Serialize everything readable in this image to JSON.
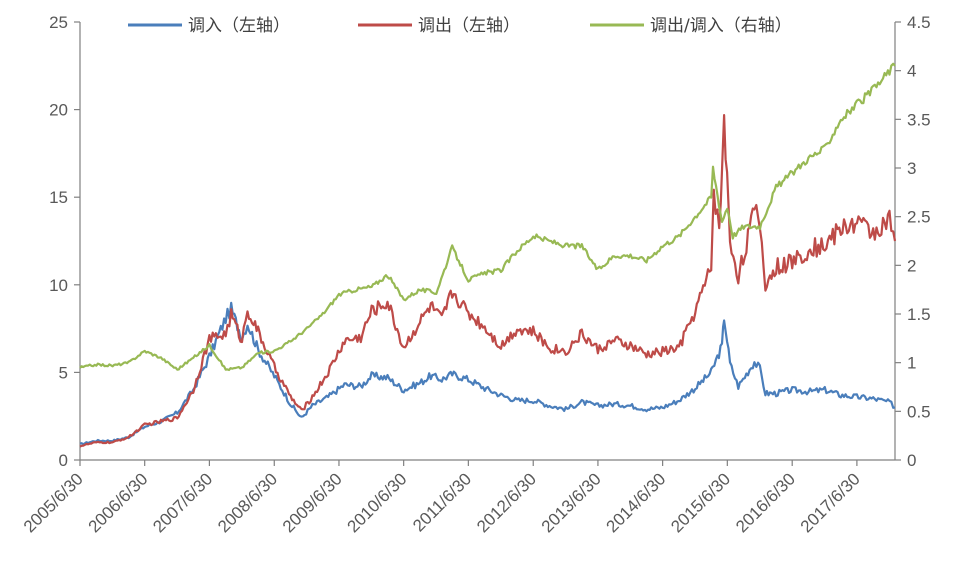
{
  "chart_data": {
    "type": "line",
    "title": "",
    "xlabel": "",
    "ylabel_left": "",
    "ylabel_right": "",
    "x_ticks": [
      "2005/6/30",
      "2006/6/30",
      "2007/6/30",
      "2008/6/30",
      "2009/6/30",
      "2010/6/30",
      "2011/6/30",
      "2012/6/30",
      "2013/6/30",
      "2014/6/30",
      "2015/6/30",
      "2016/6/30",
      "2017/6/30"
    ],
    "x_range": [
      "2005/6/30",
      "2018/1/31"
    ],
    "ylim_left": [
      0,
      25
    ],
    "ylim_right": [
      0,
      4.5
    ],
    "y_left_ticks": [
      "0",
      "5",
      "10",
      "15",
      "20",
      "25"
    ],
    "y_right_ticks": [
      "0",
      "0.5",
      "1",
      "1.5",
      "2",
      "2.5",
      "3",
      "3.5",
      "4",
      "4.5"
    ],
    "legend_position": "top-center",
    "grid": false,
    "series": [
      {
        "name": "调入（左轴）",
        "axis": "left",
        "color": "#4a7ebb",
        "points": [
          [
            "2005/6/30",
            0.9
          ],
          [
            "2005/9/30",
            1.1
          ],
          [
            "2005/12/31",
            1.1
          ],
          [
            "2006/3/31",
            1.3
          ],
          [
            "2006/6/30",
            1.9
          ],
          [
            "2006/9/30",
            2.2
          ],
          [
            "2006/12/31",
            2.7
          ],
          [
            "2007/3/31",
            4.0
          ],
          [
            "2007/6/30",
            5.9
          ],
          [
            "2007/9/30",
            8.1
          ],
          [
            "2007/10/31",
            8.6
          ],
          [
            "2007/12/31",
            7.0
          ],
          [
            "2008/1/31",
            7.8
          ],
          [
            "2008/3/31",
            6.3
          ],
          [
            "2008/6/30",
            4.8
          ],
          [
            "2008/9/30",
            3.2
          ],
          [
            "2008/11/30",
            2.4
          ],
          [
            "2009/1/31",
            3.1
          ],
          [
            "2009/4/30",
            3.6
          ],
          [
            "2009/7/31",
            4.3
          ],
          [
            "2009/10/31",
            4.2
          ],
          [
            "2009/12/31",
            4.8
          ],
          [
            "2010/3/31",
            4.7
          ],
          [
            "2010/6/30",
            4.0
          ],
          [
            "2010/9/30",
            4.4
          ],
          [
            "2010/11/30",
            4.8
          ],
          [
            "2011/1/31",
            4.6
          ],
          [
            "2011/3/31",
            4.9
          ],
          [
            "2011/6/30",
            4.6
          ],
          [
            "2011/9/30",
            4.1
          ],
          [
            "2011/12/31",
            3.7
          ],
          [
            "2012/3/31",
            3.4
          ],
          [
            "2012/6/30",
            3.4
          ],
          [
            "2012/9/30",
            3.1
          ],
          [
            "2012/12/31",
            2.9
          ],
          [
            "2013/3/31",
            3.3
          ],
          [
            "2013/6/30",
            3.1
          ],
          [
            "2013/9/30",
            3.2
          ],
          [
            "2013/12/31",
            3.1
          ],
          [
            "2014/3/31",
            2.9
          ],
          [
            "2014/6/30",
            3.0
          ],
          [
            "2014/9/30",
            3.4
          ],
          [
            "2014/12/31",
            4.1
          ],
          [
            "2015/3/31",
            5.0
          ],
          [
            "2015/5/31",
            6.5
          ],
          [
            "2015/6/12",
            8.2
          ],
          [
            "2015/7/15",
            5.5
          ],
          [
            "2015/8/31",
            4.2
          ],
          [
            "2015/11/30",
            5.6
          ],
          [
            "2015/12/31",
            5.2
          ],
          [
            "2016/1/31",
            3.8
          ],
          [
            "2016/3/31",
            3.8
          ],
          [
            "2016/6/30",
            4.0
          ],
          [
            "2016/9/30",
            3.9
          ],
          [
            "2016/12/31",
            4.0
          ],
          [
            "2017/3/31",
            3.7
          ],
          [
            "2017/6/30",
            3.6
          ],
          [
            "2017/9/30",
            3.5
          ],
          [
            "2017/12/31",
            3.3
          ],
          [
            "2018/1/31",
            3.0
          ]
        ]
      },
      {
        "name": "调出（左轴）",
        "axis": "left",
        "color": "#be4b48",
        "points": [
          [
            "2005/6/30",
            0.8
          ],
          [
            "2005/9/30",
            1.0
          ],
          [
            "2005/12/31",
            1.0
          ],
          [
            "2006/3/31",
            1.3
          ],
          [
            "2006/6/30",
            2.0
          ],
          [
            "2006/9/30",
            2.2
          ],
          [
            "2006/12/31",
            2.4
          ],
          [
            "2007/3/31",
            4.0
          ],
          [
            "2007/6/30",
            6.9
          ],
          [
            "2007/9/30",
            7.2
          ],
          [
            "2007/10/31",
            8.3
          ],
          [
            "2007/12/31",
            6.8
          ],
          [
            "2008/1/31",
            8.6
          ],
          [
            "2008/3/31",
            7.3
          ],
          [
            "2008/6/30",
            5.3
          ],
          [
            "2008/9/30",
            3.6
          ],
          [
            "2008/11/30",
            2.8
          ],
          [
            "2009/1/31",
            3.6
          ],
          [
            "2009/4/30",
            5.0
          ],
          [
            "2009/7/31",
            6.8
          ],
          [
            "2009/10/31",
            7.0
          ],
          [
            "2009/12/31",
            8.5
          ],
          [
            "2010/3/31",
            9.0
          ],
          [
            "2010/6/30",
            6.4
          ],
          [
            "2010/9/30",
            7.9
          ],
          [
            "2010/11/30",
            8.8
          ],
          [
            "2011/1/31",
            8.0
          ],
          [
            "2011/3/31",
            9.6
          ],
          [
            "2011/6/30",
            8.4
          ],
          [
            "2011/9/30",
            7.6
          ],
          [
            "2011/12/31",
            6.5
          ],
          [
            "2012/3/31",
            7.5
          ],
          [
            "2012/6/30",
            7.3
          ],
          [
            "2012/9/30",
            6.4
          ],
          [
            "2012/12/31",
            6.2
          ],
          [
            "2013/3/31",
            7.2
          ],
          [
            "2013/6/30",
            6.3
          ],
          [
            "2013/9/30",
            6.8
          ],
          [
            "2013/12/31",
            6.5
          ],
          [
            "2014/3/31",
            6.0
          ],
          [
            "2014/6/30",
            6.2
          ],
          [
            "2014/9/30",
            6.4
          ],
          [
            "2014/12/31",
            8.5
          ],
          [
            "2015/3/31",
            11.0
          ],
          [
            "2015/4/15",
            15.5
          ],
          [
            "2015/5/15",
            13.0
          ],
          [
            "2015/6/12",
            19.4
          ],
          [
            "2015/7/15",
            12.5
          ],
          [
            "2015/8/31",
            10.5
          ],
          [
            "2015/11/30",
            14.2
          ],
          [
            "2015/12/31",
            13.5
          ],
          [
            "2016/1/31",
            10.0
          ],
          [
            "2016/3/31",
            11.0
          ],
          [
            "2016/6/30",
            11.3
          ],
          [
            "2016/9/30",
            12.0
          ],
          [
            "2016/12/31",
            12.3
          ],
          [
            "2017/3/31",
            13.2
          ],
          [
            "2017/6/30",
            13.6
          ],
          [
            "2017/9/30",
            13.0
          ],
          [
            "2017/12/31",
            13.7
          ],
          [
            "2018/1/31",
            12.5
          ]
        ]
      },
      {
        "name": "调出/调入（右轴）",
        "axis": "right",
        "color": "#98b954",
        "points": [
          [
            "2005/6/30",
            0.95
          ],
          [
            "2005/9/30",
            0.98
          ],
          [
            "2005/12/31",
            0.97
          ],
          [
            "2006/3/31",
            1.0
          ],
          [
            "2006/6/30",
            1.12
          ],
          [
            "2006/9/30",
            1.05
          ],
          [
            "2006/12/31",
            0.93
          ],
          [
            "2007/3/31",
            1.05
          ],
          [
            "2007/6/30",
            1.18
          ],
          [
            "2007/9/30",
            0.93
          ],
          [
            "2007/12/31",
            0.95
          ],
          [
            "2008/3/31",
            1.1
          ],
          [
            "2008/6/30",
            1.12
          ],
          [
            "2008/9/30",
            1.22
          ],
          [
            "2008/12/31",
            1.35
          ],
          [
            "2009/3/31",
            1.5
          ],
          [
            "2009/6/30",
            1.7
          ],
          [
            "2009/9/30",
            1.75
          ],
          [
            "2009/12/31",
            1.78
          ],
          [
            "2010/3/31",
            1.9
          ],
          [
            "2010/6/30",
            1.65
          ],
          [
            "2010/9/30",
            1.75
          ],
          [
            "2010/12/31",
            1.72
          ],
          [
            "2011/3/31",
            2.18
          ],
          [
            "2011/6/30",
            1.85
          ],
          [
            "2011/9/30",
            1.92
          ],
          [
            "2011/12/31",
            1.95
          ],
          [
            "2012/3/31",
            2.15
          ],
          [
            "2012/6/30",
            2.3
          ],
          [
            "2012/9/30",
            2.25
          ],
          [
            "2012/12/31",
            2.2
          ],
          [
            "2013/3/31",
            2.2
          ],
          [
            "2013/6/30",
            1.95
          ],
          [
            "2013/9/30",
            2.1
          ],
          [
            "2013/12/31",
            2.1
          ],
          [
            "2014/3/31",
            2.05
          ],
          [
            "2014/6/30",
            2.2
          ],
          [
            "2014/9/30",
            2.3
          ],
          [
            "2014/12/31",
            2.5
          ],
          [
            "2015/3/31",
            2.7
          ],
          [
            "2015/4/10",
            3.0
          ],
          [
            "2015/5/31",
            2.45
          ],
          [
            "2015/6/30",
            2.6
          ],
          [
            "2015/7/31",
            2.3
          ],
          [
            "2015/9/30",
            2.4
          ],
          [
            "2015/12/31",
            2.4
          ],
          [
            "2016/3/31",
            2.8
          ],
          [
            "2016/6/30",
            2.95
          ],
          [
            "2016/9/30",
            3.1
          ],
          [
            "2016/12/31",
            3.2
          ],
          [
            "2017/3/31",
            3.5
          ],
          [
            "2017/6/30",
            3.65
          ],
          [
            "2017/9/30",
            3.8
          ],
          [
            "2017/12/31",
            4.0
          ],
          [
            "2018/1/31",
            4.05
          ]
        ]
      }
    ]
  }
}
